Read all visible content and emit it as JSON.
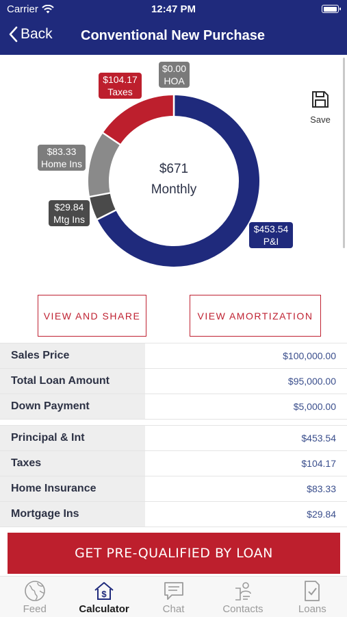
{
  "status_bar": {
    "carrier": "Carrier",
    "time": "12:47 PM"
  },
  "nav": {
    "back_label": "Back",
    "title": "Conventional New Purchase"
  },
  "save_label": "Save",
  "chart_data": {
    "type": "pie",
    "center_amount": "$671",
    "center_label": "Monthly",
    "slices": [
      {
        "name": "P&I",
        "value": 453.54,
        "label": "$453.54",
        "color": "#1f2a7c"
      },
      {
        "name": "Mtg Ins",
        "value": 29.84,
        "label": "$29.84",
        "color": "#4a4a4a"
      },
      {
        "name": "Home Ins",
        "value": 83.33,
        "label": "$83.33",
        "color": "#8a8a8a"
      },
      {
        "name": "Taxes",
        "value": 104.17,
        "label": "$104.17",
        "color": "#bd1f2d"
      },
      {
        "name": "HOA",
        "value": 0.0,
        "label": "$0.00",
        "color": "#7a7a7a"
      }
    ]
  },
  "buttons": {
    "view_share": "VIEW AND SHARE",
    "view_amort": "VIEW AMORTIZATION"
  },
  "loan_rows": [
    {
      "label": "Sales Price",
      "value": "$100,000.00"
    },
    {
      "label": "Total Loan Amount",
      "value": "$95,000.00"
    },
    {
      "label": "Down Payment",
      "value": "$5,000.00"
    }
  ],
  "payment_rows": [
    {
      "label": "Principal & Int",
      "value": "$453.54"
    },
    {
      "label": "Taxes",
      "value": "$104.17"
    },
    {
      "label": "Home Insurance",
      "value": "$83.33"
    },
    {
      "label": "Mortgage Ins",
      "value": "$29.84"
    }
  ],
  "cta_label": "GET PRE-QUALIFIED BY LOAN",
  "tabs": [
    {
      "label": "Feed",
      "icon": "globe-icon",
      "active": false
    },
    {
      "label": "Calculator",
      "icon": "house-dollar-icon",
      "active": true
    },
    {
      "label": "Chat",
      "icon": "chat-bubble-icon",
      "active": false
    },
    {
      "label": "Contacts",
      "icon": "contacts-icon",
      "active": false
    },
    {
      "label": "Loans",
      "icon": "document-check-icon",
      "active": false
    }
  ],
  "colors": {
    "brand_navy": "#1f2a7c",
    "brand_red": "#bd1f2d"
  }
}
